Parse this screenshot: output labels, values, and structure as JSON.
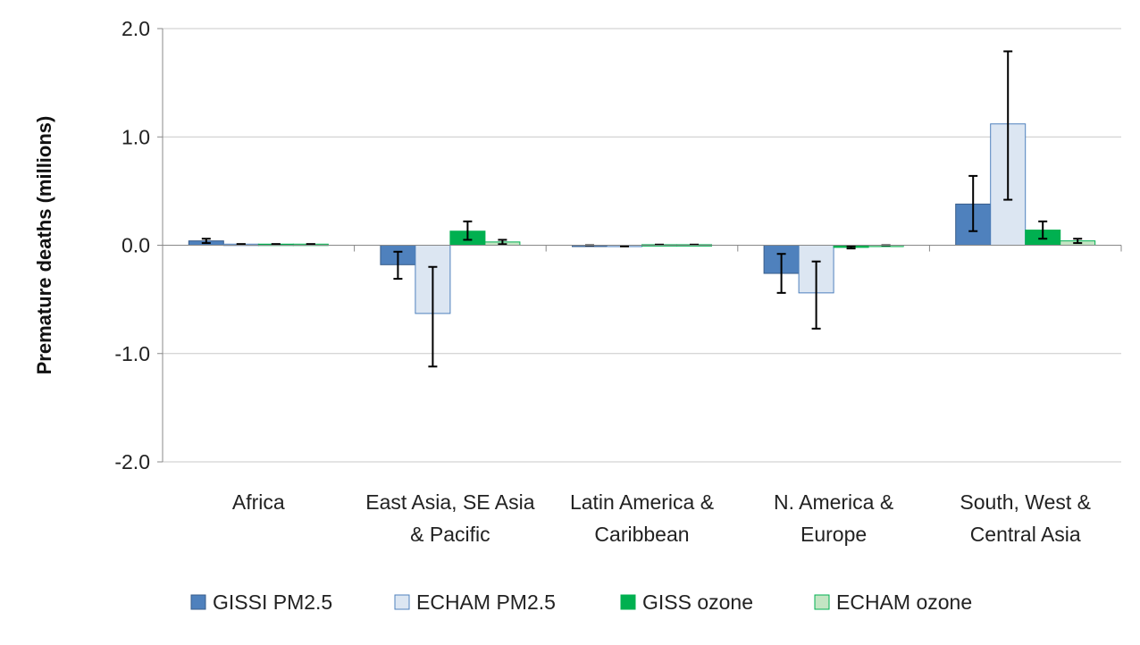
{
  "chart_data": {
    "type": "bar",
    "ylabel": "Premature deaths (millions)",
    "ylim": [
      -2.0,
      2.0
    ],
    "yticks": [
      -2.0,
      -1.0,
      0.0,
      1.0,
      2.0
    ],
    "ytick_labels": [
      "-2.0",
      "-1.0",
      "0.0",
      "1.0",
      "2.0"
    ],
    "grid": true,
    "legend_position": "bottom",
    "categories": [
      [
        "Africa"
      ],
      [
        "East Asia, SE Asia",
        "& Pacific"
      ],
      [
        "Latin America &",
        "Caribbean"
      ],
      [
        "N. America &",
        "Europe"
      ],
      [
        "South, West &",
        "Central Asia"
      ]
    ],
    "series": [
      {
        "name": "GISSI PM2.5",
        "color": "#4f81bd",
        "border": "#385d8a",
        "values": [
          0.04,
          -0.18,
          0.0,
          -0.26,
          0.38
        ],
        "error_low": [
          0.02,
          -0.31,
          0.0,
          -0.44,
          0.13
        ],
        "error_high": [
          0.06,
          -0.06,
          0.0,
          -0.08,
          0.64
        ]
      },
      {
        "name": "ECHAM PM2.5",
        "color": "#dce6f2",
        "border": "#4f81bd",
        "values": [
          0.01,
          -0.63,
          -0.01,
          -0.44,
          1.12
        ],
        "error_low": null,
        "error_high": null,
        "error_low_vals": [
          0.01,
          -1.12,
          -0.01,
          -0.77,
          0.42
        ],
        "error_high_vals": [
          0.01,
          -0.2,
          -0.01,
          -0.15,
          1.79
        ]
      },
      {
        "name": "GISS ozone",
        "color": "#00b050",
        "border": "#00b050",
        "values": [
          0.01,
          0.13,
          0.005,
          -0.02,
          0.14
        ],
        "error_low": [
          0.01,
          0.05,
          0.005,
          -0.03,
          0.06
        ],
        "error_high": [
          0.01,
          0.22,
          0.005,
          -0.01,
          0.22
        ]
      },
      {
        "name": "ECHAM ozone",
        "color": "#c3e5c3",
        "border": "#00b050",
        "values": [
          0.01,
          0.03,
          0.005,
          0.0,
          0.04
        ],
        "error_low": [
          0.01,
          0.01,
          0.005,
          0.0,
          0.02
        ],
        "error_high": [
          0.01,
          0.05,
          0.005,
          0.0,
          0.06
        ]
      }
    ]
  }
}
